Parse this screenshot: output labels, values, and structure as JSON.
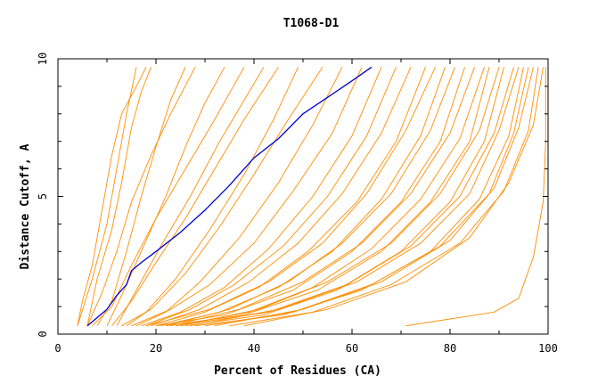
{
  "chart_data": {
    "type": "line",
    "title": "T1068-D1",
    "xlabel": "Percent of Residues (CA)",
    "ylabel": "Distance Cutoff, A",
    "xlim": [
      0,
      100
    ],
    "ylim": [
      0,
      10
    ],
    "x_ticks": [
      "0",
      "20",
      "40",
      "60",
      "80",
      "100"
    ],
    "y_ticks": [
      "0",
      "5",
      "10"
    ],
    "grid": false,
    "colors": {
      "highlight": "#0000cc",
      "others": "#ff8c00"
    },
    "highlight_series": {
      "points": [
        [
          6,
          0.3
        ],
        [
          8,
          0.6
        ],
        [
          10,
          0.9
        ],
        [
          12,
          1.4
        ],
        [
          14,
          1.8
        ],
        [
          15,
          2.3
        ],
        [
          17,
          2.6
        ],
        [
          20,
          3.0
        ],
        [
          25,
          3.7
        ],
        [
          30,
          4.5
        ],
        [
          35,
          5.4
        ],
        [
          40,
          6.4
        ],
        [
          45,
          7.1
        ],
        [
          50,
          8.0
        ],
        [
          55,
          8.6
        ],
        [
          60,
          9.2
        ],
        [
          64,
          9.7
        ]
      ]
    },
    "series": [
      {
        "points": [
          [
            4,
            0.3
          ],
          [
            7,
            2.0
          ],
          [
            10,
            4.0
          ],
          [
            12,
            6.0
          ],
          [
            14,
            8.0
          ],
          [
            16,
            9.7
          ]
        ]
      },
      {
        "points": [
          [
            4,
            0.3
          ],
          [
            5,
            1.2
          ],
          [
            7,
            2.5
          ],
          [
            9,
            4.5
          ],
          [
            11,
            6.5
          ],
          [
            13,
            8.0
          ],
          [
            16,
            9.0
          ],
          [
            18,
            9.7
          ]
        ]
      },
      {
        "points": [
          [
            6,
            0.3
          ],
          [
            8,
            2.0
          ],
          [
            11,
            3.8
          ],
          [
            13,
            5.5
          ],
          [
            15,
            7.5
          ],
          [
            17,
            8.8
          ],
          [
            19,
            9.7
          ]
        ]
      },
      {
        "points": [
          [
            8,
            0.3
          ],
          [
            11,
            1.2
          ],
          [
            14,
            3.0
          ],
          [
            17,
            5.0
          ],
          [
            20,
            6.8
          ],
          [
            23,
            8.5
          ],
          [
            26,
            9.7
          ]
        ]
      },
      {
        "points": [
          [
            6,
            0.3
          ],
          [
            9,
            1.5
          ],
          [
            12,
            3.0
          ],
          [
            15,
            4.8
          ],
          [
            19,
            6.5
          ],
          [
            23,
            8.0
          ],
          [
            28,
            9.7
          ]
        ]
      },
      {
        "points": [
          [
            10,
            0.3
          ],
          [
            13,
            1.4
          ],
          [
            17,
            3.0
          ],
          [
            22,
            5.0
          ],
          [
            26,
            6.8
          ],
          [
            30,
            8.4
          ],
          [
            34,
            9.7
          ]
        ]
      },
      {
        "points": [
          [
            7,
            0.3
          ],
          [
            11,
            1.0
          ],
          [
            15,
            2.5
          ],
          [
            20,
            4.2
          ],
          [
            26,
            6.0
          ],
          [
            32,
            7.8
          ],
          [
            38,
            9.7
          ]
        ]
      },
      {
        "points": [
          [
            12,
            0.3
          ],
          [
            16,
            1.6
          ],
          [
            21,
            3.2
          ],
          [
            27,
            5.0
          ],
          [
            33,
            7.0
          ],
          [
            39,
            8.8
          ],
          [
            42,
            9.7
          ]
        ]
      },
      {
        "points": [
          [
            11,
            0.3
          ],
          [
            15,
            1.2
          ],
          [
            20,
            2.6
          ],
          [
            26,
            4.2
          ],
          [
            32,
            6.0
          ],
          [
            38,
            7.8
          ],
          [
            45,
            9.7
          ]
        ]
      },
      {
        "points": [
          [
            14,
            0.3
          ],
          [
            18,
            0.8
          ],
          [
            24,
            2.0
          ],
          [
            31,
            3.8
          ],
          [
            38,
            5.8
          ],
          [
            44,
            7.8
          ],
          [
            49,
            9.7
          ]
        ]
      },
      {
        "points": [
          [
            13,
            0.3
          ],
          [
            19,
            0.9
          ],
          [
            26,
            2.2
          ],
          [
            33,
            3.9
          ],
          [
            40,
            5.8
          ],
          [
            47,
            7.8
          ],
          [
            54,
            9.7
          ]
        ]
      },
      {
        "points": [
          [
            16,
            0.3
          ],
          [
            22,
            0.8
          ],
          [
            29,
            1.9
          ],
          [
            37,
            3.5
          ],
          [
            45,
            5.5
          ],
          [
            52,
            7.6
          ],
          [
            58,
            9.7
          ]
        ]
      },
      {
        "points": [
          [
            15,
            0.3
          ],
          [
            23,
            0.9
          ],
          [
            31,
            1.8
          ],
          [
            40,
            3.3
          ],
          [
            48,
            5.2
          ],
          [
            56,
            7.3
          ],
          [
            62,
            9.7
          ]
        ]
      },
      {
        "points": [
          [
            17,
            0.3
          ],
          [
            25,
            0.8
          ],
          [
            34,
            1.7
          ],
          [
            43,
            3.1
          ],
          [
            52,
            5.0
          ],
          [
            60,
            7.2
          ],
          [
            66,
            9.7
          ]
        ]
      },
      {
        "points": [
          [
            18,
            0.3
          ],
          [
            27,
            0.9
          ],
          [
            36,
            1.8
          ],
          [
            46,
            3.2
          ],
          [
            55,
            5.0
          ],
          [
            63,
            7.2
          ],
          [
            69,
            9.7
          ]
        ]
      },
      {
        "points": [
          [
            19,
            0.3
          ],
          [
            29,
            0.9
          ],
          [
            39,
            1.9
          ],
          [
            49,
            3.3
          ],
          [
            58,
            5.1
          ],
          [
            66,
            7.3
          ],
          [
            72,
            9.7
          ]
        ]
      },
      {
        "points": [
          [
            20,
            0.3
          ],
          [
            30,
            0.8
          ],
          [
            41,
            1.7
          ],
          [
            51,
            3.0
          ],
          [
            61,
            4.8
          ],
          [
            69,
            7.0
          ],
          [
            75,
            9.7
          ]
        ]
      },
      {
        "points": [
          [
            18,
            0.3
          ],
          [
            31,
            0.9
          ],
          [
            43,
            1.9
          ],
          [
            54,
            3.3
          ],
          [
            63,
            5.1
          ],
          [
            71,
            7.4
          ],
          [
            77,
            9.7
          ]
        ]
      },
      {
        "points": [
          [
            21,
            0.3
          ],
          [
            33,
            0.8
          ],
          [
            45,
            1.7
          ],
          [
            56,
            3.0
          ],
          [
            66,
            4.9
          ],
          [
            74,
            7.2
          ],
          [
            79,
            9.7
          ]
        ]
      },
      {
        "points": [
          [
            22,
            0.3
          ],
          [
            35,
            0.9
          ],
          [
            47,
            1.9
          ],
          [
            58,
            3.3
          ],
          [
            68,
            5.1
          ],
          [
            76,
            7.4
          ],
          [
            81,
            9.7
          ]
        ]
      },
      {
        "points": [
          [
            20,
            0.3
          ],
          [
            34,
            0.7
          ],
          [
            48,
            1.6
          ],
          [
            60,
            3.0
          ],
          [
            70,
            4.8
          ],
          [
            78,
            7.0
          ],
          [
            83,
            9.7
          ]
        ]
      },
      {
        "points": [
          [
            23,
            0.3
          ],
          [
            37,
            0.9
          ],
          [
            50,
            1.9
          ],
          [
            62,
            3.3
          ],
          [
            72,
            5.1
          ],
          [
            80,
            7.3
          ],
          [
            85,
            9.7
          ]
        ]
      },
      {
        "points": [
          [
            24,
            0.3
          ],
          [
            39,
            0.8
          ],
          [
            52,
            1.7
          ],
          [
            64,
            3.1
          ],
          [
            74,
            4.9
          ],
          [
            82,
            7.1
          ],
          [
            87,
            9.7
          ]
        ]
      },
      {
        "points": [
          [
            22,
            0.3
          ],
          [
            38,
            0.7
          ],
          [
            53,
            1.6
          ],
          [
            66,
            3.0
          ],
          [
            76,
            4.8
          ],
          [
            84,
            7.0
          ],
          [
            88,
            9.7
          ]
        ]
      },
      {
        "points": [
          [
            25,
            0.3
          ],
          [
            41,
            0.9
          ],
          [
            55,
            1.9
          ],
          [
            68,
            3.3
          ],
          [
            78,
            5.1
          ],
          [
            86,
            7.4
          ],
          [
            90,
            9.7
          ]
        ]
      },
      {
        "points": [
          [
            26,
            0.3
          ],
          [
            42,
            0.7
          ],
          [
            57,
            1.6
          ],
          [
            70,
            3.0
          ],
          [
            80,
            4.8
          ],
          [
            87,
            7.0
          ],
          [
            91,
            9.7
          ]
        ]
      },
      {
        "points": [
          [
            24,
            0.3
          ],
          [
            43,
            0.8
          ],
          [
            59,
            1.8
          ],
          [
            72,
            3.2
          ],
          [
            82,
            5.0
          ],
          [
            89,
            7.3
          ],
          [
            93,
            9.7
          ]
        ]
      },
      {
        "points": [
          [
            27,
            0.3
          ],
          [
            45,
            0.9
          ],
          [
            61,
            1.9
          ],
          [
            74,
            3.3
          ],
          [
            84,
            5.1
          ],
          [
            90,
            7.4
          ],
          [
            94,
            9.7
          ]
        ]
      },
      {
        "points": [
          [
            28,
            0.3
          ],
          [
            46,
            0.7
          ],
          [
            62,
            1.6
          ],
          [
            76,
            3.0
          ],
          [
            86,
            4.9
          ],
          [
            92,
            7.2
          ],
          [
            95,
            9.7
          ]
        ]
      },
      {
        "points": [
          [
            30,
            0.3
          ],
          [
            48,
            0.8
          ],
          [
            64,
            1.8
          ],
          [
            78,
            3.2
          ],
          [
            88,
            5.1
          ],
          [
            93,
            7.3
          ],
          [
            96,
            9.7
          ]
        ]
      },
      {
        "points": [
          [
            32,
            0.3
          ],
          [
            50,
            0.9
          ],
          [
            66,
            1.9
          ],
          [
            80,
            3.4
          ],
          [
            89,
            5.3
          ],
          [
            94,
            7.5
          ],
          [
            97,
            9.7
          ]
        ]
      },
      {
        "points": [
          [
            35,
            0.3
          ],
          [
            52,
            0.8
          ],
          [
            68,
            1.8
          ],
          [
            82,
            3.3
          ],
          [
            91,
            5.2
          ],
          [
            96,
            7.4
          ],
          [
            98,
            9.7
          ]
        ]
      },
      {
        "points": [
          [
            38,
            0.3
          ],
          [
            55,
            0.9
          ],
          [
            71,
            1.9
          ],
          [
            84,
            3.5
          ],
          [
            92,
            5.5
          ],
          [
            97,
            7.6
          ],
          [
            99,
            9.7
          ]
        ]
      },
      {
        "points": [
          [
            71,
            0.3
          ],
          [
            89,
            0.8
          ],
          [
            94,
            1.3
          ],
          [
            97,
            2.8
          ],
          [
            99,
            4.8
          ],
          [
            99.5,
            7.0
          ],
          [
            99.5,
            9.7
          ]
        ]
      }
    ]
  }
}
